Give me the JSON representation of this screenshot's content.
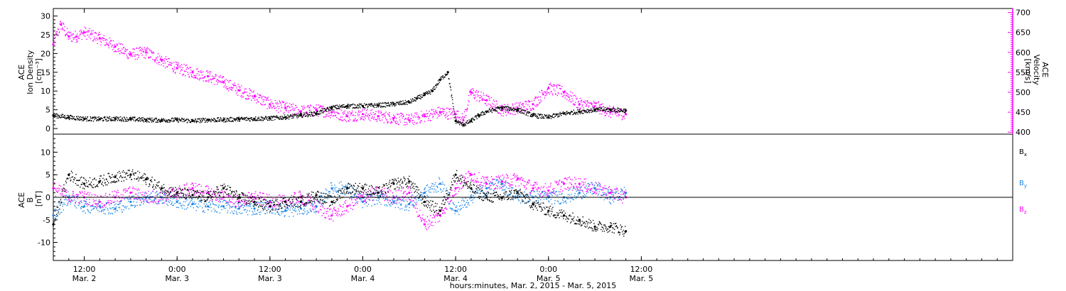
{
  "figure": {
    "xlabel": "hours:minutes, Mar. 2, 2015 - Mar. 5, 2015"
  },
  "chart_data": [
    {
      "type": "scatter",
      "panel": "top",
      "xlabel": "hours:minutes, Mar. 2, 2015 - Mar. 5, 2015",
      "x_unit": "hours since Mar. 2 00:00",
      "xlim": [
        8.0,
        132.0
      ],
      "x_ticks": [
        {
          "x": 12,
          "time": "12:00",
          "day": "Mar. 2"
        },
        {
          "x": 24,
          "time": "0:00",
          "day": "Mar. 3"
        },
        {
          "x": 36,
          "time": "12:00",
          "day": "Mar. 3"
        },
        {
          "x": 48,
          "time": "0:00",
          "day": "Mar. 4"
        },
        {
          "x": 60,
          "time": "12:00",
          "day": "Mar. 4"
        },
        {
          "x": 72,
          "time": "0:00",
          "day": "Mar. 5"
        },
        {
          "x": 84,
          "time": "12:00",
          "day": "Mar. 5"
        }
      ],
      "ylabel_left": [
        "ACE",
        "Ion Density",
        "[cm⁻³]"
      ],
      "ylim_left": [
        -1.5,
        32
      ],
      "yticks_left": [
        0,
        5,
        10,
        15,
        20,
        25,
        30
      ],
      "ylabel_right": [
        "ACE",
        "Velocity",
        "[km/s]"
      ],
      "ylim_right": [
        395,
        710
      ],
      "yticks_right": [
        400,
        450,
        500,
        550,
        600,
        650,
        700
      ],
      "colors": {
        "density": "#000000",
        "velocity": "#ff00ff"
      },
      "series": [
        {
          "name": "Ion Density",
          "axis": "left",
          "color": "#000000",
          "x": [
            8.0,
            10.0,
            12.0,
            14.0,
            16.0,
            18.0,
            20.0,
            22.0,
            24.0,
            26.0,
            28.0,
            30.0,
            32.0,
            34.0,
            36.0,
            38.0,
            40.0,
            42.0,
            44.0,
            46.0,
            48.0,
            50.0,
            52.0,
            54.0,
            55.0,
            56.0,
            57.0,
            58.0,
            59.0,
            60.0,
            61.0,
            62.0,
            63.0,
            64.0,
            66.0,
            68.0,
            70.0,
            72.0,
            74.0,
            76.0,
            78.0,
            80.0,
            82.0
          ],
          "y": [
            3.5,
            3.0,
            2.6,
            2.5,
            2.6,
            2.5,
            2.3,
            2.2,
            2.3,
            2.0,
            2.3,
            2.3,
            2.5,
            2.6,
            2.7,
            3.0,
            3.5,
            4.0,
            5.5,
            6.0,
            6.0,
            6.2,
            6.5,
            7.0,
            8.0,
            9.0,
            10.0,
            13.0,
            15.0,
            2.0,
            1.0,
            2.0,
            3.5,
            4.5,
            5.5,
            5.0,
            3.5,
            3.0,
            4.0,
            4.5,
            5.0,
            5.0,
            4.8
          ]
        },
        {
          "name": "Velocity",
          "axis": "right",
          "color": "#ff00ff",
          "x": [
            8.0,
            9.0,
            10.0,
            11.0,
            12.0,
            14.0,
            16.0,
            18.0,
            20.0,
            22.0,
            24.0,
            26.0,
            28.0,
            30.0,
            32.0,
            34.0,
            36.0,
            38.0,
            40.0,
            42.0,
            44.0,
            46.0,
            48.0,
            50.0,
            52.0,
            54.0,
            56.0,
            58.0,
            60.0,
            61.0,
            62.0,
            64.0,
            66.0,
            68.0,
            70.0,
            72.0,
            74.0,
            76.0,
            78.0,
            80.0,
            82.0
          ],
          "y": [
            620,
            670,
            640,
            640,
            650,
            635,
            615,
            595,
            600,
            580,
            560,
            550,
            540,
            525,
            505,
            490,
            470,
            460,
            452,
            455,
            450,
            440,
            445,
            440,
            435,
            430,
            440,
            450,
            445,
            430,
            500,
            480,
            455,
            460,
            470,
            510,
            500,
            470,
            465,
            450,
            445
          ]
        }
      ]
    },
    {
      "type": "scatter",
      "panel": "bottom",
      "ylabel": [
        "ACE",
        "B",
        "[nT]"
      ],
      "ylim": [
        -14,
        14
      ],
      "yticks": [
        -10,
        -5,
        0,
        5,
        10
      ],
      "zero_line": true,
      "x_unit": "hours since Mar. 2 00:00",
      "xlim": [
        8.0,
        132.0
      ],
      "legend_placement": "right",
      "colors": {
        "bx": "#000000",
        "by": "#1e88e5",
        "bz": "#ff00ff"
      },
      "series": [
        {
          "name": "Bx",
          "legend": {
            "base": "B",
            "sub": "x"
          },
          "color": "#000000",
          "x": [
            8.0,
            10.0,
            12.0,
            14.0,
            16.0,
            18.0,
            20.0,
            22.0,
            24.0,
            26.0,
            28.0,
            30.0,
            32.0,
            34.0,
            36.0,
            38.0,
            40.0,
            42.0,
            44.0,
            46.0,
            48.0,
            50.0,
            52.0,
            54.0,
            56.0,
            58.0,
            60.0,
            62.0,
            64.0,
            66.0,
            68.0,
            70.0,
            72.0,
            74.0,
            76.0,
            78.0,
            80.0,
            82.0
          ],
          "y": [
            -6.0,
            5.0,
            3.0,
            3.5,
            4.5,
            5.0,
            4.0,
            2.0,
            1.0,
            0.5,
            0.0,
            2.0,
            0.0,
            -1.0,
            -2.0,
            -1.0,
            -1.0,
            0.5,
            -1.0,
            2.0,
            2.0,
            1.0,
            3.0,
            3.5,
            -1.0,
            -3.0,
            5.0,
            2.0,
            0.0,
            0.0,
            1.0,
            -1.5,
            -3.0,
            -4.0,
            -5.0,
            -6.5,
            -6.5,
            -7.5
          ]
        },
        {
          "name": "By",
          "legend": {
            "base": "B",
            "sub": "y"
          },
          "color": "#1e88e5",
          "x": [
            8.0,
            10.0,
            12.0,
            14.0,
            16.0,
            18.0,
            20.0,
            22.0,
            24.0,
            26.0,
            28.0,
            30.0,
            32.0,
            34.0,
            36.0,
            38.0,
            40.0,
            42.0,
            44.0,
            46.0,
            48.0,
            50.0,
            52.0,
            54.0,
            56.0,
            58.0,
            60.0,
            62.0,
            64.0,
            66.0,
            68.0,
            70.0,
            72.0,
            74.0,
            76.0,
            78.0,
            80.0,
            82.0
          ],
          "y": [
            -4.0,
            0.0,
            -2.0,
            -2.0,
            -2.5,
            -1.0,
            0.0,
            0.0,
            -1.0,
            -1.5,
            -2.0,
            -2.0,
            -2.5,
            -2.5,
            -2.0,
            -3.0,
            -2.5,
            -2.0,
            2.0,
            2.0,
            -1.0,
            0.0,
            -1.0,
            -1.5,
            1.0,
            3.0,
            -3.0,
            0.0,
            2.0,
            3.0,
            0.0,
            0.0,
            0.0,
            0.0,
            1.0,
            2.0,
            0.0,
            1.0
          ]
        },
        {
          "name": "Bz",
          "legend": {
            "base": "B",
            "sub": "z"
          },
          "color": "#ff00ff",
          "x": [
            8.0,
            10.0,
            12.0,
            14.0,
            16.0,
            18.0,
            20.0,
            22.0,
            24.0,
            26.0,
            28.0,
            30.0,
            32.0,
            34.0,
            36.0,
            38.0,
            40.0,
            42.0,
            44.0,
            46.0,
            48.0,
            50.0,
            52.0,
            54.0,
            56.0,
            58.0,
            60.0,
            62.0,
            64.0,
            66.0,
            68.0,
            70.0,
            72.0,
            74.0,
            76.0,
            78.0,
            80.0,
            82.0
          ],
          "y": [
            2.0,
            0.0,
            0.0,
            -1.0,
            0.0,
            1.0,
            0.0,
            0.0,
            1.0,
            2.0,
            1.0,
            0.0,
            -1.0,
            0.0,
            -1.0,
            -1.0,
            0.0,
            -2.0,
            -4.0,
            -2.0,
            0.0,
            1.0,
            0.0,
            1.0,
            -6.0,
            -4.0,
            2.0,
            5.0,
            3.0,
            3.5,
            4.0,
            2.0,
            1.5,
            3.0,
            3.0,
            2.0,
            1.0,
            0.0
          ]
        }
      ]
    }
  ]
}
